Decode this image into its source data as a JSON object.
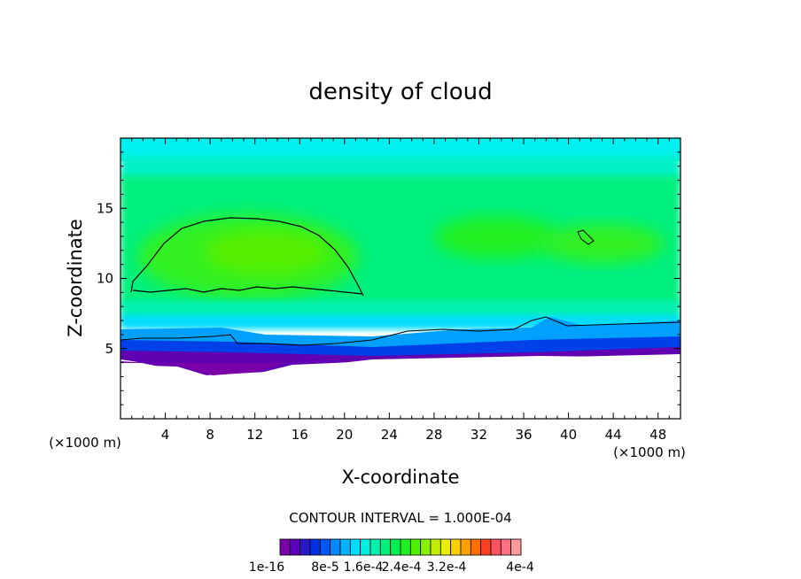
{
  "chart_data": {
    "type": "heatmap",
    "title": "density of cloud",
    "xlabel": "X-coordinate",
    "ylabel": "Z-coordinate",
    "x_unit": "(×1000 m)",
    "y_unit": "(×1000 m)",
    "xlim": [
      0,
      50
    ],
    "ylim": [
      0,
      20
    ],
    "x_ticks": [
      4,
      8,
      12,
      16,
      20,
      24,
      28,
      32,
      36,
      40,
      44,
      48
    ],
    "y_ticks": [
      5,
      10,
      15
    ],
    "contour_interval_label": "CONTOUR INTERVAL = 1.000E-04",
    "colorbar": {
      "labels": [
        "1e-16",
        "8e-5",
        "1.6e-4",
        "2.4e-4",
        "3.2e-4",
        "4e-4"
      ],
      "colors": [
        "#7a00a8",
        "#5a00b8",
        "#2a18c8",
        "#0030e0",
        "#0058f0",
        "#0088ff",
        "#00b4ff",
        "#00dcff",
        "#00f0e0",
        "#00f0b0",
        "#00f080",
        "#00f050",
        "#20f020",
        "#50f000",
        "#88f000",
        "#c0f000",
        "#e8f000",
        "#ffd000",
        "#ffa000",
        "#ff7000",
        "#ff4020",
        "#ff5060",
        "#ff7080",
        "#ff9a9a"
      ]
    },
    "cloud_base_km": 4.5,
    "cloud_top_km": 20
  }
}
